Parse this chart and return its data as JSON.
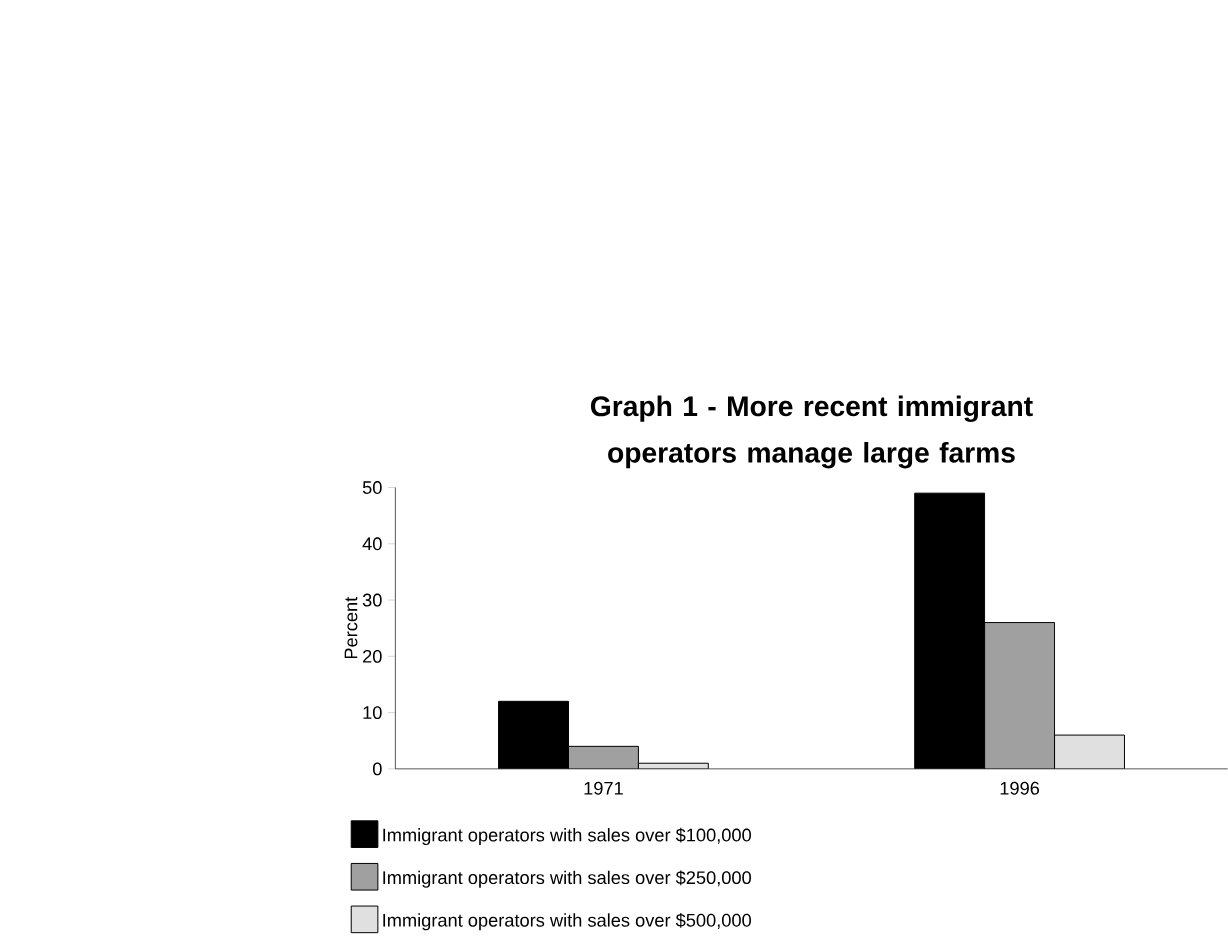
{
  "chart_data": {
    "type": "bar",
    "title": "Graph 1 - More recent immigrant operators manage large farms",
    "ylabel": "Percent",
    "categories": [
      "1971",
      "1996"
    ],
    "series": [
      {
        "name": "Immigrant operators with sales over $100,000",
        "color": "#000000",
        "values": [
          12,
          49
        ]
      },
      {
        "name": "Immigrant operators with sales over $250,000",
        "color": "#a0a0a0",
        "values": [
          4,
          26
        ]
      },
      {
        "name": "Immigrant operators with sales over $500,000",
        "color": "#e0e0e0",
        "values": [
          1,
          6
        ]
      }
    ],
    "ylim": [
      0,
      50
    ],
    "yticks": [
      0,
      10,
      20,
      30,
      40,
      50
    ],
    "legend": "bottom"
  }
}
